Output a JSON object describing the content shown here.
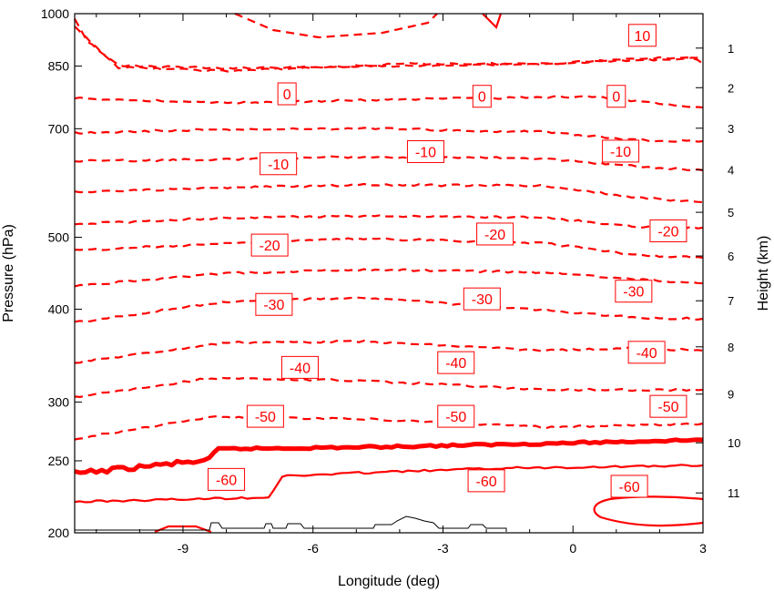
{
  "chart_data": {
    "type": "contour",
    "xlabel": "Longitude (deg)",
    "ylabel": "Pressure (hPa)",
    "y2label": "Height (km)",
    "xlim": [
      -11.5,
      3
    ],
    "ylim_hpa": [
      1000,
      200
    ],
    "y_scale": "log",
    "x_ticks": [
      -9,
      -6,
      -3,
      0,
      3
    ],
    "x_tick_labels": [
      "-9",
      "-6",
      "-3",
      "0",
      "3"
    ],
    "y_ticks": [
      1000,
      850,
      700,
      500,
      400,
      300,
      250,
      200
    ],
    "y_tick_labels": [
      "1000",
      "850",
      "700",
      "500",
      "400",
      "300",
      "250",
      "200"
    ],
    "y2_ticks": [
      1,
      2,
      3,
      4,
      5,
      6,
      7,
      8,
      9,
      10,
      11
    ],
    "y2_tick_labels": [
      "1",
      "2",
      "3",
      "4",
      "5",
      "6",
      "7",
      "8",
      "9",
      "10",
      "11"
    ],
    "contour_color": "#ff0000",
    "terrain_color": "#000000",
    "contours": [
      {
        "level": 10,
        "style": "solid",
        "labels": [
          "10"
        ],
        "label_at": [
          {
            "x": 1.6,
            "p": 935
          }
        ]
      },
      {
        "level": 5,
        "style": "solid",
        "labels": [],
        "label_at": []
      },
      {
        "level": 0,
        "style": "solid-thick",
        "labels": [
          "0",
          "0",
          "0"
        ],
        "label_at": [
          {
            "x": -6.6,
            "p": 780
          },
          {
            "x": -2.1,
            "p": 774
          },
          {
            "x": 1.0,
            "p": 774
          }
        ]
      },
      {
        "level": -5,
        "style": "dashed",
        "labels": [],
        "label_at": []
      },
      {
        "level": -10,
        "style": "dashed",
        "labels": [
          "-10",
          "-10",
          "-10"
        ],
        "label_at": [
          {
            "x": -6.8,
            "p": 628
          },
          {
            "x": -3.4,
            "p": 652
          },
          {
            "x": 1.1,
            "p": 653
          }
        ]
      },
      {
        "level": -15,
        "style": "dashed",
        "labels": [],
        "label_at": []
      },
      {
        "level": -20,
        "style": "dashed",
        "labels": [
          "-20",
          "-20",
          "-20"
        ],
        "label_at": [
          {
            "x": -7.0,
            "p": 488
          },
          {
            "x": -1.8,
            "p": 505
          },
          {
            "x": 2.2,
            "p": 510
          }
        ]
      },
      {
        "level": -25,
        "style": "dashed",
        "labels": [],
        "label_at": []
      },
      {
        "level": -30,
        "style": "dashed",
        "labels": [
          "-30",
          "-30",
          "-30"
        ],
        "label_at": [
          {
            "x": -6.9,
            "p": 406
          },
          {
            "x": -2.1,
            "p": 413
          },
          {
            "x": 1.4,
            "p": 423
          }
        ]
      },
      {
        "level": -35,
        "style": "dashed",
        "labels": [],
        "label_at": []
      },
      {
        "level": -40,
        "style": "dashed",
        "labels": [
          "-40",
          "-40",
          "-40"
        ],
        "label_at": [
          {
            "x": -6.3,
            "p": 334
          },
          {
            "x": -2.7,
            "p": 339
          },
          {
            "x": 1.7,
            "p": 350
          }
        ]
      },
      {
        "level": -45,
        "style": "dashed",
        "labels": [],
        "label_at": []
      },
      {
        "level": -50,
        "style": "dashed",
        "labels": [
          "-50",
          "-50",
          "-50"
        ],
        "label_at": [
          {
            "x": -7.1,
            "p": 287
          },
          {
            "x": -2.7,
            "p": 287
          },
          {
            "x": 2.2,
            "p": 296
          }
        ]
      },
      {
        "level": -55,
        "style": "dashed",
        "labels": [],
        "label_at": []
      },
      {
        "level": -60,
        "style": "dashed",
        "labels": [
          "-60",
          "-60",
          "-60"
        ],
        "label_at": [
          {
            "x": -8.0,
            "p": 236
          },
          {
            "x": -2.0,
            "p": 235
          },
          {
            "x": 1.3,
            "p": 231
          }
        ]
      },
      {
        "level": -65,
        "style": "dashed",
        "labels": [],
        "label_at": []
      }
    ],
    "terrain_profile": {
      "note": "thin black orography outline near 1000 hPa"
    }
  }
}
